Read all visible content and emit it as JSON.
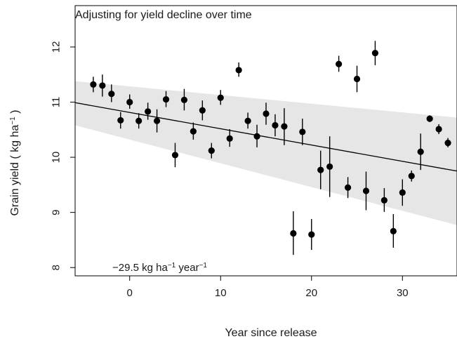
{
  "chart_data": {
    "type": "scatter",
    "title": "Adjusting for yield decline over time",
    "xlabel": "Year since release",
    "ylabel_parts": [
      "Grain yield ( kg ha",
      "−1",
      " )"
    ],
    "annotation_parts": [
      "−29.5 kg ha",
      "−1",
      " year",
      "−1"
    ],
    "xlim": [
      -6,
      36
    ],
    "ylim": [
      7.85,
      12.75
    ],
    "x_ticks": [
      0,
      10,
      20,
      30
    ],
    "y_ticks": [
      8,
      9,
      10,
      11,
      12
    ],
    "grid": false,
    "legend": "none",
    "regression": {
      "x": [
        -6,
        36
      ],
      "y": [
        10.99,
        9.75
      ],
      "band_lower": [
        10.58,
        8.77
      ],
      "band_upper": [
        11.38,
        10.72
      ],
      "band_color": "#e6e6e6",
      "line_color": "#000000"
    },
    "series": [
      {
        "marker_color": "#000000",
        "points": [
          {
            "x": -4,
            "y": 11.32,
            "lo": 11.18,
            "hi": 11.46
          },
          {
            "x": -3,
            "y": 11.3,
            "lo": 11.1,
            "hi": 11.5
          },
          {
            "x": -2,
            "y": 11.15,
            "lo": 11.0,
            "hi": 11.32
          },
          {
            "x": -1,
            "y": 10.67,
            "lo": 10.52,
            "hi": 10.82
          },
          {
            "x": 0,
            "y": 11.0,
            "lo": 10.88,
            "hi": 11.14
          },
          {
            "x": 1,
            "y": 10.66,
            "lo": 10.52,
            "hi": 10.8
          },
          {
            "x": 2,
            "y": 10.83,
            "lo": 10.68,
            "hi": 10.99
          },
          {
            "x": 3,
            "y": 10.66,
            "lo": 10.45,
            "hi": 10.87
          },
          {
            "x": 4,
            "y": 11.05,
            "lo": 10.91,
            "hi": 11.2
          },
          {
            "x": 5,
            "y": 10.04,
            "lo": 9.82,
            "hi": 10.26
          },
          {
            "x": 6,
            "y": 11.04,
            "lo": 10.85,
            "hi": 11.24
          },
          {
            "x": 7,
            "y": 10.47,
            "lo": 10.32,
            "hi": 10.63
          },
          {
            "x": 8,
            "y": 10.85,
            "lo": 10.67,
            "hi": 11.03
          },
          {
            "x": 9,
            "y": 10.12,
            "lo": 9.98,
            "hi": 10.26
          },
          {
            "x": 10,
            "y": 11.08,
            "lo": 10.95,
            "hi": 11.22
          },
          {
            "x": 11,
            "y": 10.34,
            "lo": 10.19,
            "hi": 10.51
          },
          {
            "x": 12,
            "y": 11.58,
            "lo": 11.46,
            "hi": 11.72
          },
          {
            "x": 13,
            "y": 10.66,
            "lo": 10.52,
            "hi": 10.81
          },
          {
            "x": 14,
            "y": 10.38,
            "lo": 10.18,
            "hi": 10.59
          },
          {
            "x": 15,
            "y": 10.79,
            "lo": 10.59,
            "hi": 10.99
          },
          {
            "x": 16,
            "y": 10.58,
            "lo": 10.38,
            "hi": 10.78
          },
          {
            "x": 17,
            "y": 10.56,
            "lo": 10.22,
            "hi": 10.89
          },
          {
            "x": 18,
            "y": 8.62,
            "lo": 8.23,
            "hi": 9.02
          },
          {
            "x": 19,
            "y": 10.46,
            "lo": 10.22,
            "hi": 10.7
          },
          {
            "x": 20,
            "y": 8.6,
            "lo": 8.32,
            "hi": 8.88
          },
          {
            "x": 21,
            "y": 9.77,
            "lo": 9.42,
            "hi": 10.12
          },
          {
            "x": 22,
            "y": 9.83,
            "lo": 9.28,
            "hi": 10.38
          },
          {
            "x": 23,
            "y": 11.69,
            "lo": 11.55,
            "hi": 11.84
          },
          {
            "x": 24,
            "y": 9.45,
            "lo": 9.26,
            "hi": 9.64
          },
          {
            "x": 25,
            "y": 11.42,
            "lo": 11.18,
            "hi": 11.66
          },
          {
            "x": 26,
            "y": 9.39,
            "lo": 9.04,
            "hi": 9.74
          },
          {
            "x": 27,
            "y": 11.89,
            "lo": 11.67,
            "hi": 12.11
          },
          {
            "x": 28,
            "y": 9.22,
            "lo": 9.01,
            "hi": 9.44
          },
          {
            "x": 29,
            "y": 8.66,
            "lo": 8.36,
            "hi": 8.97
          },
          {
            "x": 30,
            "y": 9.36,
            "lo": 9.12,
            "hi": 9.6
          },
          {
            "x": 31,
            "y": 9.66,
            "lo": 9.56,
            "hi": 9.76
          },
          {
            "x": 32,
            "y": 10.1,
            "lo": 9.77,
            "hi": 10.43
          },
          {
            "x": 33,
            "y": 10.7,
            "lo": 10.64,
            "hi": 10.76
          },
          {
            "x": 34,
            "y": 10.51,
            "lo": 10.42,
            "hi": 10.6
          },
          {
            "x": 35,
            "y": 10.26,
            "lo": 10.18,
            "hi": 10.35
          }
        ]
      }
    ]
  }
}
